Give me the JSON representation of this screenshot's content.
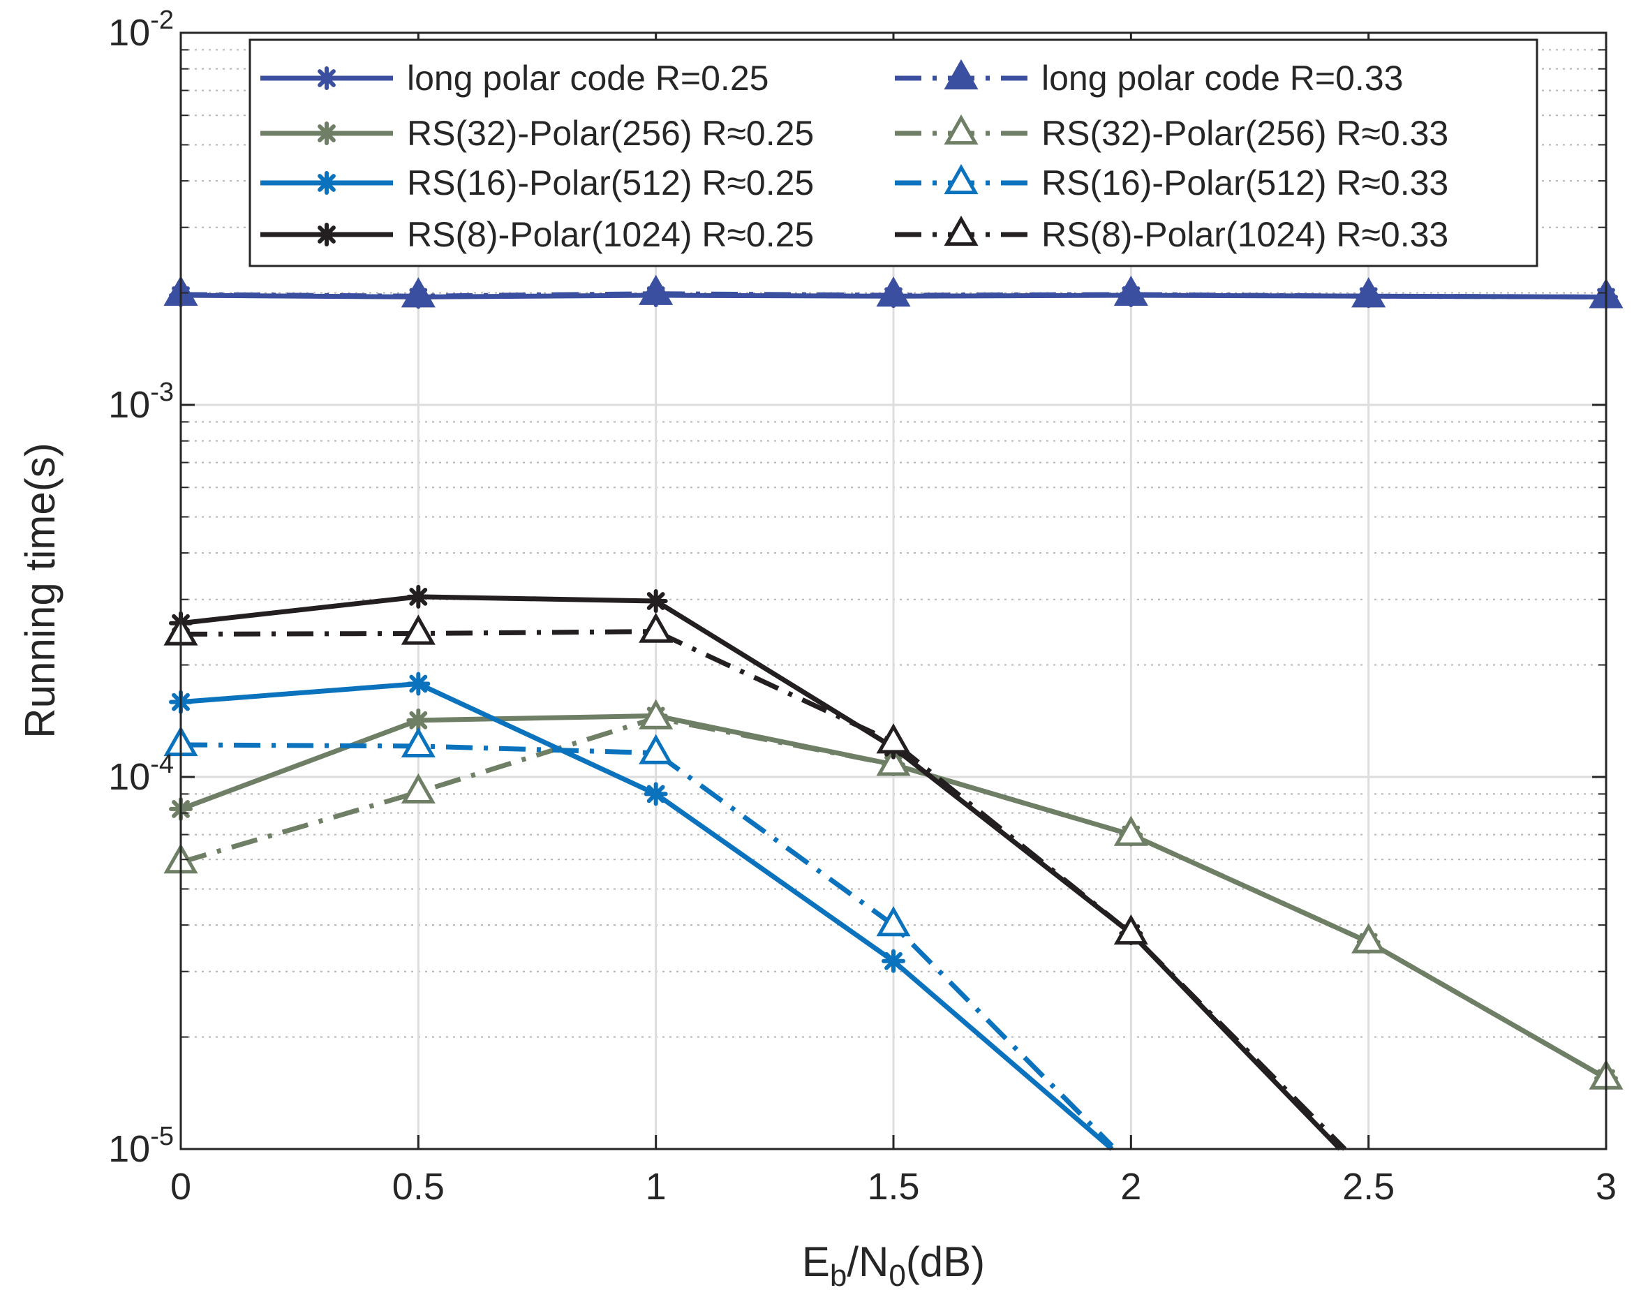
{
  "chart_data": {
    "type": "line",
    "title": "",
    "xlabel": {
      "base": "E",
      "sub1": "b",
      "mid": "/N",
      "sub2": "0",
      "tail": "(dB)"
    },
    "ylabel": "Running time(s)",
    "xlim": [
      0,
      3
    ],
    "ylim": [
      1e-05,
      0.01
    ],
    "yscale": "log",
    "grid": true,
    "x": [
      0,
      0.5,
      1,
      1.5,
      2,
      2.5,
      3
    ],
    "x_tick_labels": [
      "0",
      "0.5",
      "1",
      "1.5",
      "2",
      "2.5",
      "3"
    ],
    "y_ticks": [
      {
        "value": 1e-05,
        "base": "10",
        "exp": "-5"
      },
      {
        "value": 0.0001,
        "base": "10",
        "exp": "-4"
      },
      {
        "value": 0.001,
        "base": "10",
        "exp": "-3"
      },
      {
        "value": 0.01,
        "base": "10",
        "exp": "-2"
      }
    ],
    "legend_location": "top",
    "series": [
      {
        "name": "long polar code R=0.25",
        "color": "#3b4fa0",
        "dash": "solid",
        "marker": "star",
        "x": [
          0,
          0.5,
          1,
          1.5,
          2,
          2.5,
          3
        ],
        "values": [
          0.00197,
          0.00195,
          0.00197,
          0.00196,
          0.00197,
          0.00196,
          0.00195
        ]
      },
      {
        "name": "long polar code R=0.33",
        "color": "#3b4fa0",
        "dash": "dashdot",
        "marker": "triangle",
        "x": [
          0,
          0.5,
          1,
          1.5,
          2,
          2.5,
          3
        ],
        "values": [
          0.00198,
          0.00196,
          0.00199,
          0.00197,
          0.00198,
          0.00196,
          0.00195
        ]
      },
      {
        "name": "RS(32)-Polar(256) R≈0.25",
        "color": "#6e7f66",
        "dash": "solid",
        "marker": "star",
        "x": [
          0,
          0.5,
          1,
          1.5,
          2,
          2.5,
          3
        ],
        "values": [
          8.2e-05,
          0.000142,
          0.000146,
          0.000108,
          7e-05,
          3.6e-05,
          1.55e-05
        ]
      },
      {
        "name": "RS(32)-Polar(256) R≈0.33",
        "color": "#6e7f66",
        "dash": "dashdot",
        "marker": "triangle",
        "x": [
          0,
          0.5,
          1,
          1.5,
          2,
          2.5,
          3
        ],
        "values": [
          5.9e-05,
          9.1e-05,
          0.000144,
          0.000108,
          7e-05,
          3.6e-05,
          1.55e-05
        ]
      },
      {
        "name": "RS(16)-Polar(512) R≈0.25",
        "color": "#0b72bd",
        "dash": "solid",
        "marker": "star",
        "x": [
          0,
          0.5,
          1,
          1.5,
          1.96
        ],
        "values": [
          0.000159,
          0.000178,
          9e-05,
          3.2e-05,
          1e-05
        ]
      },
      {
        "name": "RS(16)-Polar(512) R≈0.33",
        "color": "#0b72bd",
        "dash": "dashdot",
        "marker": "triangle",
        "x": [
          0,
          0.5,
          1,
          1.5,
          1.96
        ],
        "values": [
          0.000122,
          0.000121,
          0.000116,
          4e-05,
          1.02e-05
        ]
      },
      {
        "name": "RS(8)-Polar(1024) R≈0.25",
        "color": "#231f20",
        "dash": "solid",
        "marker": "star",
        "x": [
          0,
          0.5,
          1,
          1.5,
          2,
          2.44
        ],
        "values": [
          0.000259,
          0.000305,
          0.000297,
          0.00012,
          3.8e-05,
          1e-05
        ]
      },
      {
        "name": "RS(8)-Polar(1024) R≈0.33",
        "color": "#231f20",
        "dash": "dashdot",
        "marker": "triangle",
        "x": [
          0,
          0.5,
          1,
          1.5,
          2,
          2.45
        ],
        "values": [
          0.000242,
          0.000243,
          0.000246,
          0.000124,
          3.8e-05,
          1e-05
        ]
      }
    ],
    "legend_columns": [
      [
        "long polar code R=0.25",
        "RS(32)-Polar(256) R≈0.25",
        "RS(16)-Polar(512) R≈0.25",
        "RS(8)-Polar(1024) R≈0.25"
      ],
      [
        "long polar code R=0.33",
        "RS(32)-Polar(256) R≈0.33",
        "RS(16)-Polar(512) R≈0.33",
        "RS(8)-Polar(1024) R≈0.33"
      ]
    ]
  }
}
